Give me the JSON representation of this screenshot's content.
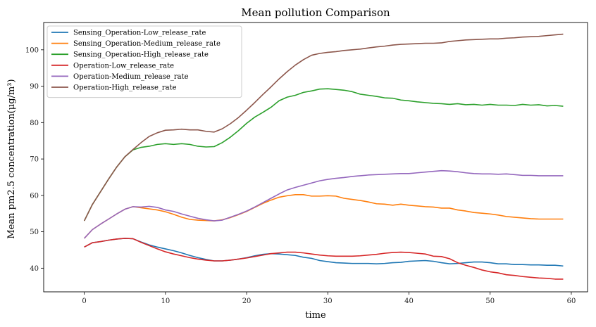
{
  "chart_data": {
    "type": "line",
    "title": "Mean pollution Comparison",
    "xlabel": "time",
    "ylabel": "Mean pm2.5 concentration(μg/m³)",
    "xlim": [
      -5,
      62
    ],
    "ylim": [
      33.5,
      107.5
    ],
    "xticks": [
      0,
      10,
      20,
      30,
      40,
      50,
      60
    ],
    "yticks": [
      40,
      50,
      60,
      70,
      80,
      90,
      100
    ],
    "grid": false,
    "legend_position": "top-left",
    "x": [
      0,
      1,
      2,
      3,
      4,
      5,
      6,
      7,
      8,
      9,
      10,
      11,
      12,
      13,
      14,
      15,
      16,
      17,
      18,
      19,
      20,
      21,
      22,
      23,
      24,
      25,
      26,
      27,
      28,
      29,
      30,
      31,
      32,
      33,
      34,
      35,
      36,
      37,
      38,
      39,
      40,
      41,
      42,
      43,
      44,
      45,
      46,
      47,
      48,
      49,
      50,
      51,
      52,
      53,
      54,
      55,
      56,
      57,
      58,
      59
    ],
    "series": [
      {
        "name": "Sensing_Operation-Low_release_rate",
        "color": "#1f77b4",
        "values": [
          45.8,
          47.0,
          47.3,
          47.7,
          48.0,
          48.2,
          48.1,
          47.2,
          46.4,
          45.8,
          45.3,
          44.8,
          44.2,
          43.5,
          42.9,
          42.4,
          42.0,
          42.0,
          42.2,
          42.5,
          42.9,
          43.4,
          43.8,
          44.0,
          43.9,
          43.7,
          43.5,
          43.0,
          42.7,
          42.1,
          41.8,
          41.5,
          41.4,
          41.3,
          41.3,
          41.3,
          41.2,
          41.3,
          41.5,
          41.6,
          41.9,
          42.0,
          42.1,
          41.9,
          41.5,
          41.2,
          41.3,
          41.5,
          41.7,
          41.7,
          41.5,
          41.2,
          41.2,
          41.0,
          41.0,
          40.9,
          40.9,
          40.8,
          40.8,
          40.6
        ]
      },
      {
        "name": "Sensing_Operation-Medium_release_rate",
        "color": "#ff7f0e",
        "values": [
          48.2,
          50.6,
          52.1,
          53.5,
          54.9,
          56.2,
          56.9,
          56.6,
          56.3,
          56.0,
          55.5,
          54.8,
          54.0,
          53.4,
          53.2,
          53.1,
          53.0,
          53.3,
          53.9,
          54.7,
          55.6,
          56.7,
          57.8,
          58.7,
          59.5,
          59.9,
          60.2,
          60.2,
          59.8,
          59.8,
          59.9,
          59.8,
          59.2,
          58.9,
          58.6,
          58.2,
          57.7,
          57.6,
          57.3,
          57.6,
          57.3,
          57.1,
          56.9,
          56.8,
          56.5,
          56.5,
          56.0,
          55.7,
          55.3,
          55.1,
          54.9,
          54.6,
          54.2,
          54.0,
          53.8,
          53.6,
          53.5,
          53.5,
          53.5,
          53.5
        ]
      },
      {
        "name": "Sensing_Operation-High_release_rate",
        "color": "#2ca02c",
        "values": [
          53.0,
          57.5,
          61.0,
          64.5,
          67.8,
          70.6,
          72.5,
          73.2,
          73.5,
          74.0,
          74.2,
          74.0,
          74.2,
          74.0,
          73.5,
          73.3,
          73.4,
          74.5,
          76.0,
          77.8,
          79.8,
          81.5,
          82.8,
          84.2,
          86.0,
          87.0,
          87.5,
          88.3,
          88.7,
          89.2,
          89.3,
          89.1,
          88.9,
          88.5,
          87.8,
          87.5,
          87.2,
          86.8,
          86.7,
          86.2,
          86.0,
          85.7,
          85.5,
          85.3,
          85.2,
          85.0,
          85.2,
          84.9,
          85.0,
          84.8,
          85.0,
          84.8,
          84.8,
          84.7,
          85.0,
          84.8,
          84.9,
          84.6,
          84.7,
          84.5
        ]
      },
      {
        "name": "Operation-Low_release_rate",
        "color": "#d62728",
        "values": [
          45.8,
          47.0,
          47.3,
          47.7,
          48.0,
          48.2,
          48.1,
          47.1,
          46.2,
          45.3,
          44.5,
          43.9,
          43.4,
          42.9,
          42.5,
          42.2,
          42.0,
          42.0,
          42.2,
          42.5,
          42.8,
          43.2,
          43.6,
          44.0,
          44.2,
          44.4,
          44.4,
          44.2,
          43.9,
          43.6,
          43.4,
          43.3,
          43.3,
          43.3,
          43.4,
          43.6,
          43.8,
          44.1,
          44.3,
          44.4,
          44.3,
          44.1,
          43.9,
          43.3,
          43.2,
          42.6,
          41.5,
          40.8,
          40.2,
          39.5,
          39.0,
          38.7,
          38.2,
          38.0,
          37.7,
          37.5,
          37.3,
          37.2,
          37.0,
          37.0
        ]
      },
      {
        "name": "Operation-Medium_release_rate",
        "color": "#9467bd",
        "values": [
          48.2,
          50.6,
          52.1,
          53.5,
          54.9,
          56.2,
          56.9,
          56.8,
          57.0,
          56.7,
          56.0,
          55.6,
          54.9,
          54.3,
          53.7,
          53.3,
          53.0,
          53.2,
          54.0,
          54.8,
          55.7,
          56.8,
          58.0,
          59.2,
          60.4,
          61.5,
          62.2,
          62.8,
          63.4,
          64.0,
          64.4,
          64.7,
          64.9,
          65.2,
          65.4,
          65.6,
          65.7,
          65.8,
          65.9,
          66.0,
          66.0,
          66.2,
          66.4,
          66.6,
          66.8,
          66.7,
          66.5,
          66.2,
          66.0,
          65.9,
          65.9,
          65.8,
          65.9,
          65.7,
          65.5,
          65.5,
          65.4,
          65.4,
          65.4,
          65.4
        ]
      },
      {
        "name": "Operation-High_release_rate",
        "color": "#8c564b",
        "values": [
          53.0,
          57.5,
          61.0,
          64.5,
          67.8,
          70.6,
          72.6,
          74.5,
          76.2,
          77.2,
          77.9,
          78.0,
          78.2,
          78.0,
          78.0,
          77.6,
          77.4,
          78.3,
          79.7,
          81.4,
          83.4,
          85.5,
          87.7,
          89.8,
          92.0,
          94.0,
          95.8,
          97.3,
          98.5,
          99.0,
          99.3,
          99.5,
          99.8,
          100.0,
          100.2,
          100.5,
          100.8,
          101.0,
          101.3,
          101.5,
          101.6,
          101.7,
          101.8,
          101.8,
          101.9,
          102.3,
          102.5,
          102.7,
          102.8,
          102.9,
          103.0,
          103.0,
          103.2,
          103.3,
          103.5,
          103.6,
          103.7,
          103.9,
          104.1,
          104.3
        ]
      }
    ]
  }
}
